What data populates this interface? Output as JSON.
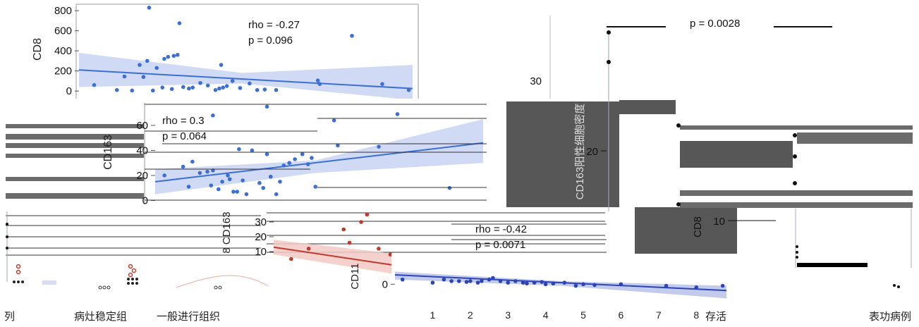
{
  "chart_data": [
    {
      "type": "scatter",
      "id": "cd8",
      "ylabel": "CD8",
      "yticks": [
        "800",
        "600",
        "400",
        "200",
        "0"
      ],
      "ylim": [
        -90,
        850
      ],
      "xlim": [
        0,
        8.8
      ],
      "stat_rho": "rho = -0.27",
      "stat_p": "p = 0.096",
      "color": "#3b6fd6",
      "band_color": "#c8d4f2",
      "points": [
        [
          0.4,
          60
        ],
        [
          1.0,
          10
        ],
        [
          1.2,
          145
        ],
        [
          1.4,
          5
        ],
        [
          1.6,
          260
        ],
        [
          1.7,
          140
        ],
        [
          1.8,
          300
        ],
        [
          1.85,
          830
        ],
        [
          1.95,
          5
        ],
        [
          2.05,
          230
        ],
        [
          2.2,
          35
        ],
        [
          2.25,
          320
        ],
        [
          2.35,
          340
        ],
        [
          2.45,
          20
        ],
        [
          2.5,
          350
        ],
        [
          2.6,
          360
        ],
        [
          2.65,
          675
        ],
        [
          2.75,
          40
        ],
        [
          2.9,
          25
        ],
        [
          3.0,
          35
        ],
        [
          3.2,
          80
        ],
        [
          3.4,
          55
        ],
        [
          3.6,
          10
        ],
        [
          3.7,
          25
        ],
        [
          3.75,
          260
        ],
        [
          3.8,
          35
        ],
        [
          3.9,
          50
        ],
        [
          4.05,
          100
        ],
        [
          4.25,
          30
        ],
        [
          4.5,
          75
        ],
        [
          4.7,
          10
        ],
        [
          4.9,
          15
        ],
        [
          5.2,
          10
        ],
        [
          6.3,
          105
        ],
        [
          6.35,
          70
        ],
        [
          7.2,
          550
        ],
        [
          8.0,
          70
        ],
        [
          8.7,
          10
        ]
      ],
      "fit": [
        [
          0,
          210
        ],
        [
          8.8,
          25
        ]
      ],
      "band_top": [
        [
          0,
          380
        ],
        [
          4.3,
          180
        ],
        [
          8.8,
          260
        ]
      ],
      "band_bot": [
        [
          0,
          40
        ],
        [
          4.3,
          75
        ],
        [
          8.8,
          -90
        ]
      ]
    },
    {
      "type": "scatter",
      "id": "cd163",
      "ylabel": "CD163",
      "yticks": [
        "60",
        "40",
        "20",
        "0"
      ],
      "ylim": [
        -2,
        78
      ],
      "xlim": [
        0,
        8.8
      ],
      "stat_rho": "rho = 0.3",
      "stat_p": "p = 0.064",
      "color": "#3b6fd6",
      "band_color": "#c8d4f2",
      "points": [
        [
          0.25,
          20
        ],
        [
          0.75,
          27
        ],
        [
          0.9,
          11
        ],
        [
          1.0,
          31
        ],
        [
          1.2,
          22
        ],
        [
          1.4,
          23
        ],
        [
          1.5,
          12
        ],
        [
          1.55,
          24
        ],
        [
          1.7,
          9
        ],
        [
          1.8,
          15
        ],
        [
          1.95,
          20
        ],
        [
          2.0,
          17
        ],
        [
          2.1,
          7
        ],
        [
          2.2,
          7
        ],
        [
          2.25,
          41
        ],
        [
          2.35,
          16
        ],
        [
          2.45,
          5
        ],
        [
          2.6,
          40
        ],
        [
          2.8,
          14
        ],
        [
          2.9,
          10
        ],
        [
          3.0,
          37
        ],
        [
          3.1,
          19
        ],
        [
          3.25,
          5
        ],
        [
          3.35,
          15
        ],
        [
          3.45,
          28
        ],
        [
          3.6,
          30
        ],
        [
          3.75,
          33
        ],
        [
          3.95,
          37
        ],
        [
          4.1,
          29
        ],
        [
          4.2,
          34
        ],
        [
          4.3,
          11
        ],
        [
          4.9,
          44
        ],
        [
          1.55,
          68
        ],
        [
          3.0,
          75
        ],
        [
          4.8,
          64
        ],
        [
          6.5,
          69
        ],
        [
          6.0,
          43
        ],
        [
          7.9,
          10
        ]
      ],
      "fit": [
        [
          0,
          15
        ],
        [
          8.8,
          46
        ]
      ],
      "band_top": [
        [
          0,
          25
        ],
        [
          4.3,
          32
        ],
        [
          8.8,
          65
        ]
      ],
      "band_bot": [
        [
          0,
          5
        ],
        [
          4.3,
          22
        ],
        [
          8.8,
          30
        ]
      ]
    },
    {
      "type": "scatter",
      "id": "cd11",
      "ylabel": "CD11",
      "yticks": [
        "0"
      ],
      "ylim": [
        -12,
        15
      ],
      "xlim": [
        0,
        8.8
      ],
      "xticks": [
        "1",
        "2",
        "3",
        "4",
        "5",
        "6",
        "7",
        "8"
      ],
      "stat_rho": "rho = -0.42",
      "stat_p": "p = 0.0071",
      "color": "#2b45b8",
      "band_color": "#b9c2ea",
      "points": [
        [
          0.2,
          3
        ],
        [
          1.0,
          1
        ],
        [
          1.3,
          3
        ],
        [
          1.5,
          2
        ],
        [
          1.7,
          2
        ],
        [
          1.9,
          1.5
        ],
        [
          2.0,
          2
        ],
        [
          2.2,
          1
        ],
        [
          2.3,
          2
        ],
        [
          2.5,
          3
        ],
        [
          2.6,
          4
        ],
        [
          2.8,
          2
        ],
        [
          3.0,
          1
        ],
        [
          3.2,
          2
        ],
        [
          3.4,
          1
        ],
        [
          3.5,
          0.5
        ],
        [
          3.7,
          1
        ],
        [
          3.9,
          1.5
        ],
        [
          4.0,
          0
        ],
        [
          4.2,
          0.5
        ],
        [
          4.5,
          1
        ],
        [
          4.8,
          -1
        ],
        [
          5.0,
          0
        ],
        [
          5.3,
          -0.5
        ],
        [
          6.0,
          0
        ],
        [
          7.2,
          -1
        ],
        [
          8.0,
          -2
        ],
        [
          8.7,
          -1
        ]
      ],
      "fit": [
        [
          0,
          6
        ],
        [
          8.8,
          -4
        ]
      ],
      "band_top": [
        [
          0,
          8
        ],
        [
          4.4,
          2
        ],
        [
          8.8,
          -1
        ]
      ],
      "band_bot": [
        [
          0,
          3
        ],
        [
          4.4,
          -1
        ],
        [
          8.8,
          -9
        ]
      ]
    },
    {
      "type": "scatter",
      "id": "cd163_red",
      "ylabel": "8 CD163",
      "yticks": [
        "30",
        "20",
        "10"
      ],
      "ylim": [
        0,
        40
      ],
      "xlim": [
        0,
        2.2
      ],
      "color": "#c0392b",
      "band_color": "#f2c9c4",
      "points": [
        [
          0.3,
          5
        ],
        [
          0.6,
          12
        ],
        [
          1.2,
          25
        ],
        [
          1.3,
          16
        ],
        [
          1.5,
          30
        ],
        [
          1.6,
          35
        ],
        [
          1.8,
          12
        ],
        [
          2.0,
          8
        ],
        [
          2.1,
          3
        ]
      ],
      "fit": [
        [
          0,
          13
        ],
        [
          2.2,
          0
        ]
      ],
      "band_top": [
        [
          0,
          18
        ],
        [
          2.2,
          8
        ]
      ],
      "band_bot": [
        [
          0,
          8
        ],
        [
          2.2,
          -6
        ]
      ]
    },
    {
      "type": "scatter",
      "id": "box",
      "stat_p": "p = 0.0028",
      "yticks": [
        "30",
        "20"
      ],
      "ylabel": "CD163阳性细胞密度",
      "ylabel2": "CD8",
      "ytick2": "10",
      "dot_color": "#111111"
    }
  ],
  "labels": {
    "bottom_left": "列",
    "group_a": "病灶稳定组",
    "group_b": "一般进行组织",
    "bottom_right_a": "存活",
    "bottom_right_b": "表功病例"
  }
}
